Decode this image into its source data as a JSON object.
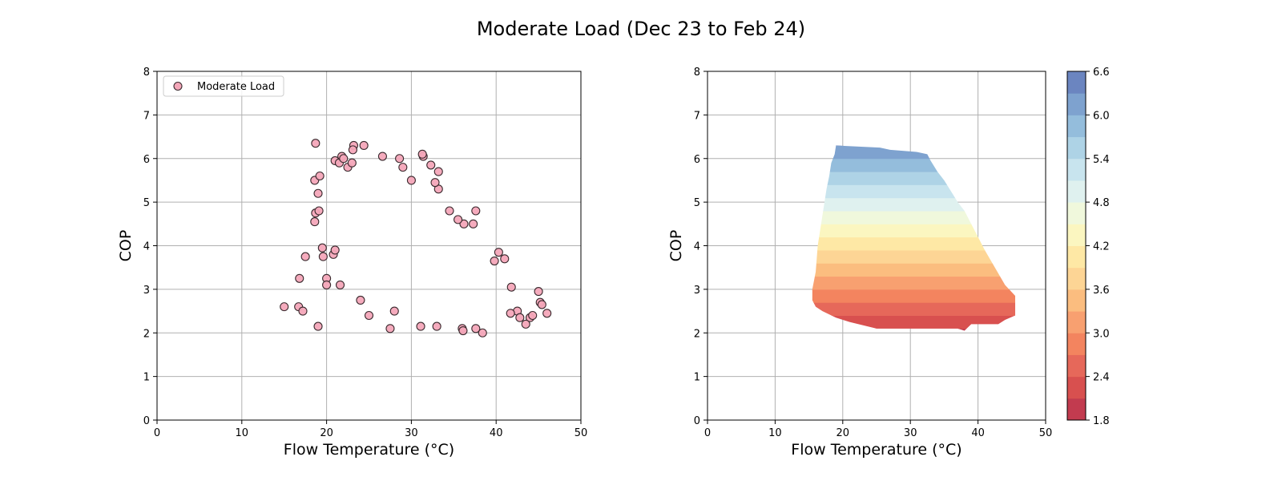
{
  "figure": {
    "title": "Moderate Load (Dec 23 to Feb 24)"
  },
  "chart_data": [
    {
      "type": "scatter",
      "xlabel": "Flow Temperature (°C)",
      "ylabel": "COP",
      "xlim": [
        0,
        50
      ],
      "ylim": [
        0,
        8
      ],
      "xticks": [
        0,
        10,
        20,
        30,
        40,
        50
      ],
      "yticks": [
        0,
        1,
        2,
        3,
        4,
        5,
        6,
        7,
        8
      ],
      "grid": true,
      "legend": {
        "position": "top-left",
        "entries": [
          "Moderate Load"
        ]
      },
      "marker_color": "#f4a7b9",
      "marker_edge": "#3a2a2e",
      "series": [
        {
          "name": "Moderate Load",
          "points": [
            [
              15.0,
              2.6
            ],
            [
              16.7,
              2.6
            ],
            [
              16.8,
              3.25
            ],
            [
              17.2,
              2.5
            ],
            [
              17.5,
              3.75
            ],
            [
              18.7,
              6.35
            ],
            [
              18.6,
              5.5
            ],
            [
              18.7,
              4.75
            ],
            [
              18.6,
              4.55
            ],
            [
              19.0,
              5.2
            ],
            [
              19.2,
              5.6
            ],
            [
              19.1,
              4.8
            ],
            [
              19.0,
              2.15
            ],
            [
              19.5,
              3.95
            ],
            [
              19.6,
              3.75
            ],
            [
              20.0,
              3.25
            ],
            [
              20.0,
              3.1
            ],
            [
              20.8,
              3.8
            ],
            [
              21.0,
              3.9
            ],
            [
              21.6,
              3.1
            ],
            [
              21.0,
              5.95
            ],
            [
              21.5,
              5.9
            ],
            [
              21.8,
              6.05
            ],
            [
              22.0,
              6.0
            ],
            [
              23.2,
              6.3
            ],
            [
              23.1,
              6.2
            ],
            [
              24.4,
              6.3
            ],
            [
              22.5,
              5.8
            ],
            [
              23.0,
              5.9
            ],
            [
              26.6,
              6.05
            ],
            [
              28.6,
              6.0
            ],
            [
              31.4,
              6.05
            ],
            [
              31.3,
              6.1
            ],
            [
              32.3,
              5.85
            ],
            [
              24.0,
              2.75
            ],
            [
              25.0,
              2.4
            ],
            [
              27.5,
              2.1
            ],
            [
              28.0,
              2.5
            ],
            [
              31.1,
              2.15
            ],
            [
              33.0,
              2.15
            ],
            [
              36.0,
              2.1
            ],
            [
              36.1,
              2.05
            ],
            [
              37.6,
              2.1
            ],
            [
              38.4,
              2.0
            ],
            [
              44.0,
              2.35
            ],
            [
              44.3,
              2.4
            ],
            [
              43.5,
              2.2
            ],
            [
              45.0,
              2.95
            ],
            [
              45.2,
              2.7
            ],
            [
              45.4,
              2.65
            ],
            [
              46.0,
              2.45
            ],
            [
              42.5,
              2.5
            ],
            [
              42.8,
              2.35
            ],
            [
              41.7,
              2.45
            ],
            [
              40.3,
              3.85
            ],
            [
              41.0,
              3.7
            ],
            [
              41.8,
              3.05
            ],
            [
              39.8,
              3.65
            ],
            [
              37.6,
              4.8
            ],
            [
              37.3,
              4.5
            ],
            [
              36.2,
              4.5
            ],
            [
              35.5,
              4.6
            ],
            [
              34.5,
              4.8
            ],
            [
              33.2,
              5.3
            ],
            [
              32.8,
              5.45
            ],
            [
              33.2,
              5.7
            ],
            [
              30.0,
              5.5
            ],
            [
              29.0,
              5.8
            ]
          ]
        }
      ]
    },
    {
      "type": "contour",
      "xlabel": "Flow Temperature (°C)",
      "ylabel": "COP",
      "xlim": [
        0,
        50
      ],
      "ylim": [
        0,
        8
      ],
      "xticks": [
        0,
        10,
        20,
        30,
        40,
        50
      ],
      "yticks": [
        0,
        1,
        2,
        3,
        4,
        5,
        6,
        7,
        8
      ],
      "grid": true,
      "colormap": "RdYlBu",
      "colorbar": {
        "range": [
          1.8,
          6.6
        ],
        "step": 0.3,
        "ticks": [
          "1.8",
          "2.4",
          "3.0",
          "3.6",
          "4.2",
          "4.8",
          "5.4",
          "6.0",
          "6.6"
        ],
        "colors": [
          "#c23b4f",
          "#d8504f",
          "#e6685a",
          "#f3845f",
          "#f8a070",
          "#fbbd7f",
          "#fdd595",
          "#fee8a5",
          "#fbf6c0",
          "#f0f8dc",
          "#dff1ef",
          "#c8e4ee",
          "#aed3e6",
          "#94bddc",
          "#7ea2cf",
          "#6b85c0"
        ]
      },
      "region": [
        [
          19.0,
          6.3
        ],
        [
          25.5,
          6.25
        ],
        [
          27.0,
          6.2
        ],
        [
          31.0,
          6.15
        ],
        [
          32.5,
          6.1
        ],
        [
          33.0,
          5.95
        ],
        [
          34.0,
          5.7
        ],
        [
          35.0,
          5.5
        ],
        [
          36.0,
          5.25
        ],
        [
          37.0,
          5.0
        ],
        [
          38.0,
          4.8
        ],
        [
          39.0,
          4.5
        ],
        [
          40.0,
          4.2
        ],
        [
          41.0,
          3.9
        ],
        [
          42.5,
          3.5
        ],
        [
          44.0,
          3.1
        ],
        [
          45.5,
          2.85
        ],
        [
          45.5,
          2.4
        ],
        [
          44.0,
          2.3
        ],
        [
          43.0,
          2.2
        ],
        [
          39.0,
          2.2
        ],
        [
          38.0,
          2.05
        ],
        [
          37.0,
          2.1
        ],
        [
          25.0,
          2.1
        ],
        [
          21.0,
          2.25
        ],
        [
          19.0,
          2.35
        ],
        [
          17.0,
          2.5
        ],
        [
          16.0,
          2.6
        ],
        [
          15.5,
          2.75
        ],
        [
          15.5,
          3.0
        ],
        [
          16.0,
          3.4
        ],
        [
          16.3,
          4.0
        ],
        [
          16.7,
          4.4
        ],
        [
          17.2,
          4.9
        ],
        [
          17.6,
          5.3
        ],
        [
          18.0,
          5.6
        ],
        [
          18.3,
          5.9
        ],
        [
          18.8,
          6.1
        ]
      ]
    }
  ]
}
